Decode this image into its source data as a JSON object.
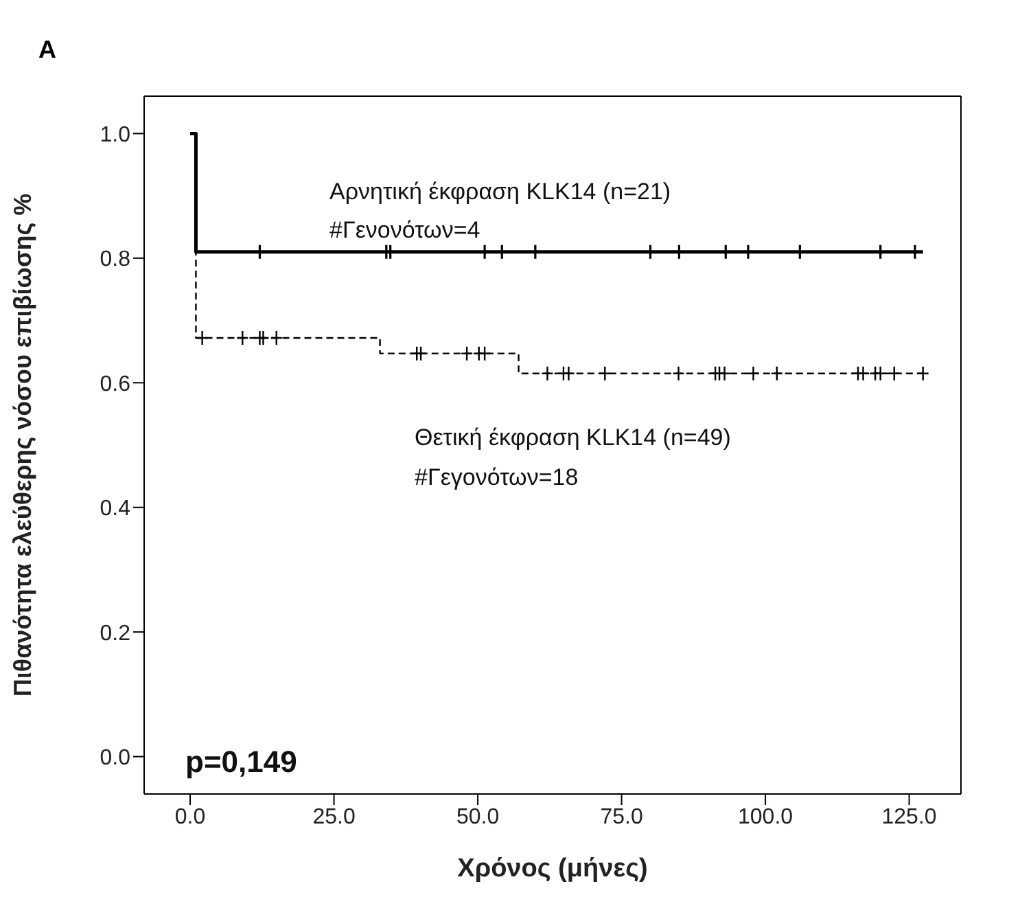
{
  "chart_data": {
    "type": "step",
    "title": "A",
    "xlabel": "Χρόνος (μήνες)",
    "ylabel": "Πιθανότητα ελεύθερης νόσου επιβίωσης %",
    "xlim": [
      -8,
      134
    ],
    "ylim": [
      -0.06,
      1.06
    ],
    "xticks": [
      {
        "value": 0,
        "label": "0.0"
      },
      {
        "value": 25,
        "label": "25.0"
      },
      {
        "value": 50,
        "label": "50.0"
      },
      {
        "value": 75,
        "label": "75.0"
      },
      {
        "value": 100,
        "label": "100.0"
      },
      {
        "value": 125,
        "label": "125.0"
      }
    ],
    "yticks": [
      {
        "value": 0,
        "label": "0.0"
      },
      {
        "value": 0.2,
        "label": "0.2"
      },
      {
        "value": 0.4,
        "label": "0.4"
      },
      {
        "value": 0.6,
        "label": "0.6"
      },
      {
        "value": 0.8,
        "label": "0.8"
      },
      {
        "value": 1,
        "label": "1.0"
      }
    ],
    "grid": false,
    "legend": false,
    "annotations": [
      "Αρνητική έκφραση KLK14 (n=21)",
      "#Γενονότων=4",
      "Θετική έκφραση KLK14 (n=49)",
      "#Γεγονότων=18",
      "p=0,149"
    ],
    "series": [
      {
        "color": "#000000",
        "line_style": "solid",
        "marker": "none",
        "x": [
          0,
          1,
          127.4
        ],
        "values": [
          1,
          0.81,
          0.81
        ]
      },
      {
        "color": "#000000",
        "line_style": "dashed",
        "marker": "none",
        "x": [
          0,
          1,
          33,
          57.1,
          127.4
        ],
        "values": [
          1,
          0.672,
          0.647,
          0.615,
          0.615
        ]
      },
      {
        "type": "scatter",
        "color": "#000000",
        "marker": "cross",
        "x": [
          12.1,
          34.1,
          34.8,
          51.2,
          54.2,
          60,
          80,
          85,
          93.1,
          97,
          106,
          120,
          126
        ],
        "values": [
          0.81,
          0.81,
          0.81,
          0.81,
          0.81,
          0.81,
          0.81,
          0.81,
          0.81,
          0.81,
          0.81,
          0.81,
          0.81
        ]
      },
      {
        "type": "scatter",
        "color": "#000000",
        "marker": "cross",
        "x": [
          2.1,
          9.1,
          12.1,
          12.7,
          15,
          39.4,
          40.1,
          48.1,
          50.2,
          51.2,
          62.1,
          64.9,
          65.8,
          72.1,
          84.9,
          91.3,
          92,
          92.9,
          97.9,
          102,
          116.1,
          117,
          119.1,
          120,
          122.4,
          127.4
        ],
        "values": [
          0.672,
          0.672,
          0.672,
          0.672,
          0.672,
          0.647,
          0.647,
          0.647,
          0.647,
          0.647,
          0.615,
          0.615,
          0.615,
          0.615,
          0.615,
          0.615,
          0.615,
          0.615,
          0.615,
          0.615,
          0.615,
          0.615,
          0.615,
          0.615,
          0.615,
          0.615
        ]
      }
    ]
  }
}
